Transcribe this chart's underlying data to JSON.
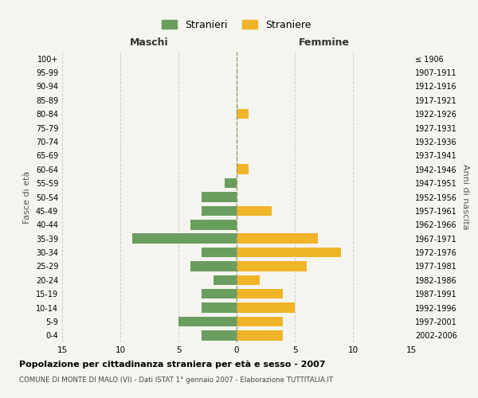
{
  "age_groups": [
    "0-4",
    "5-9",
    "10-14",
    "15-19",
    "20-24",
    "25-29",
    "30-34",
    "35-39",
    "40-44",
    "45-49",
    "50-54",
    "55-59",
    "60-64",
    "65-69",
    "70-74",
    "75-79",
    "80-84",
    "85-89",
    "90-94",
    "95-99",
    "100+"
  ],
  "birth_years": [
    "2002-2006",
    "1997-2001",
    "1992-1996",
    "1987-1991",
    "1982-1986",
    "1977-1981",
    "1972-1976",
    "1967-1971",
    "1962-1966",
    "1957-1961",
    "1952-1956",
    "1947-1951",
    "1942-1946",
    "1937-1941",
    "1932-1936",
    "1927-1931",
    "1922-1926",
    "1917-1921",
    "1912-1916",
    "1907-1911",
    "≤ 1906"
  ],
  "maschi": [
    3,
    5,
    3,
    3,
    2,
    4,
    3,
    9,
    4,
    3,
    3,
    1,
    0,
    0,
    0,
    0,
    0,
    0,
    0,
    0,
    0
  ],
  "femmine": [
    4,
    4,
    5,
    4,
    2,
    6,
    9,
    7,
    0,
    3,
    0,
    0,
    1,
    0,
    0,
    0,
    1,
    0,
    0,
    0,
    0
  ],
  "maschi_color": "#6a9e5f",
  "femmine_color": "#f0b429",
  "title": "Popolazione per cittadinanza straniera per età e sesso - 2007",
  "subtitle": "COMUNE DI MONTE DI MALO (VI) - Dati ISTAT 1° gennaio 2007 - Elaborazione TUTTITALIA.IT",
  "xlabel_left": "Maschi",
  "xlabel_right": "Femmine",
  "ylabel_left": "Fasce di età",
  "ylabel_right": "Anni di nascita",
  "legend_stranieri": "Stranieri",
  "legend_straniere": "Straniere",
  "xlim": 15,
  "background_color": "#f5f5f0",
  "grid_color": "#cccccc"
}
